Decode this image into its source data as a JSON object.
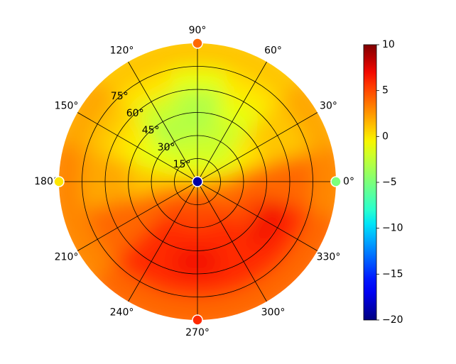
{
  "chart_data": {
    "type": "polar_heatmap",
    "colormap": "jet",
    "theta": [
      0,
      30,
      60,
      90,
      120,
      150,
      180,
      210,
      240,
      270,
      300,
      330
    ],
    "r": [
      7.5,
      22.5,
      37.5,
      52.5,
      67.5,
      82.5
    ],
    "values": [
      [
        2,
        0,
        -1,
        -1,
        -1,
        0,
        1,
        3,
        4,
        4,
        4,
        3
      ],
      [
        3,
        -1,
        -2,
        -2,
        -2,
        -1,
        1,
        4,
        5,
        5,
        5,
        4
      ],
      [
        4,
        0,
        -2,
        -3,
        -3,
        -1,
        1,
        4,
        6,
        6,
        6,
        5
      ],
      [
        4,
        1,
        -1,
        -3,
        -2,
        0,
        2,
        4,
        6,
        7,
        6,
        7
      ],
      [
        4,
        1,
        0,
        -1,
        0,
        1,
        2,
        4,
        6,
        6,
        6,
        6
      ],
      [
        3,
        2,
        1,
        1,
        1,
        2,
        3,
        3,
        4,
        4,
        4,
        4
      ]
    ],
    "points": {
      "theta": [
        0,
        90,
        180,
        270,
        0
      ],
      "r": [
        90,
        90,
        90,
        90,
        0
      ],
      "values": [
        -5,
        4,
        0,
        6,
        -19
      ]
    },
    "rlim": [
      0,
      90
    ],
    "rticks": [
      {
        "value": 15,
        "label": "15°"
      },
      {
        "value": 30,
        "label": "30°"
      },
      {
        "value": 45,
        "label": "45°"
      },
      {
        "value": 60,
        "label": "60°"
      },
      {
        "value": 75,
        "label": "75°"
      }
    ],
    "thetaticks": [
      {
        "value": 0,
        "label": "0°"
      },
      {
        "value": 30,
        "label": "30°"
      },
      {
        "value": 60,
        "label": "60°"
      },
      {
        "value": 90,
        "label": "90°"
      },
      {
        "value": 120,
        "label": "120°"
      },
      {
        "value": 150,
        "label": "150°"
      },
      {
        "value": 180,
        "label": "180°"
      },
      {
        "value": 210,
        "label": "210°"
      },
      {
        "value": 240,
        "label": "240°"
      },
      {
        "value": 270,
        "label": "270°"
      },
      {
        "value": 300,
        "label": "300°"
      },
      {
        "value": 330,
        "label": "330°"
      }
    ],
    "clim": [
      -20,
      10
    ],
    "cticks": [
      {
        "value": -20,
        "label": "−20"
      },
      {
        "value": -15,
        "label": "−15"
      },
      {
        "value": -10,
        "label": "−10"
      },
      {
        "value": -5,
        "label": "−5"
      },
      0,
      5,
      10
    ],
    "grid": true
  }
}
